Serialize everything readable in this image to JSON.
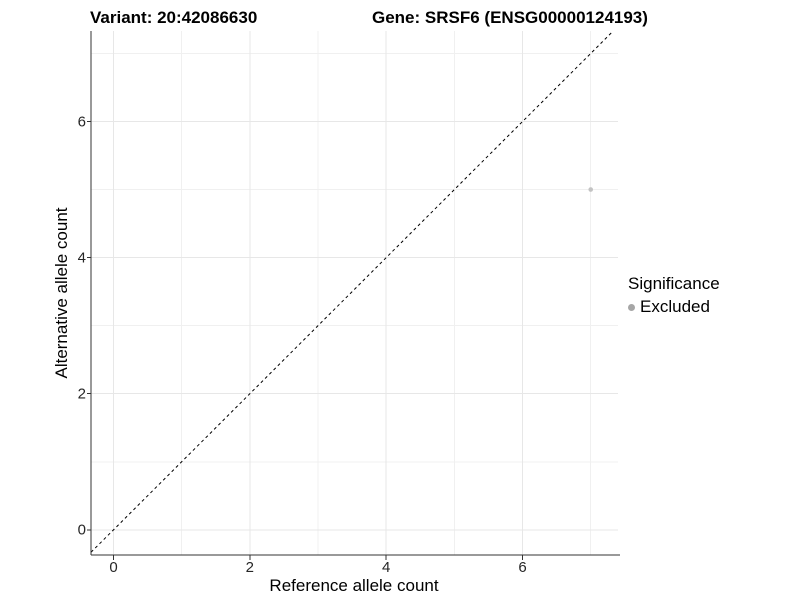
{
  "header": {
    "title_left": "Variant: 20:42086630",
    "title_right": "Gene: SRSF6 (ENSG00000124193)"
  },
  "axes": {
    "x_label": "Reference allele count",
    "y_label": "Alternative allele count"
  },
  "legend": {
    "title": "Significance",
    "items": [
      {
        "label": "Excluded",
        "color": "#bebebe",
        "marker": "dot"
      }
    ]
  },
  "chart_data": {
    "type": "scatter",
    "title": "Variant: 20:42086630 | Gene: SRSF6 (ENSG00000124193)",
    "xlabel": "Reference allele count",
    "ylabel": "Alternative allele count",
    "xlim": [
      -0.33,
      7.4
    ],
    "ylim": [
      -0.37,
      7.33
    ],
    "x_major_ticks": [
      0,
      2,
      4,
      6
    ],
    "y_major_ticks": [
      0,
      2,
      4,
      6
    ],
    "x_minor_gridlines": [
      1,
      3,
      5,
      7
    ],
    "y_minor_gridlines": [
      1,
      3,
      5,
      7
    ],
    "grid": "major and minor gridlines, light grey on white",
    "legend_position": "right",
    "series": [
      {
        "name": "Excluded",
        "color": "#bebebe",
        "points": [
          {
            "x": 7,
            "y": 5
          }
        ]
      }
    ],
    "reference_line": {
      "type": "identity y = x",
      "style": "dashed",
      "color": "#000000"
    }
  },
  "style": {
    "grid_major_color": "#e7e7e7",
    "grid_minor_color": "#f0f0f0",
    "axis_line_color": "#333333",
    "tick_mark_color": "#333333",
    "tick_label_color": "#262626",
    "point_color": "#c3c3c3",
    "legend_dot_color": "#a6a6a6",
    "background_color": "#ffffff"
  }
}
